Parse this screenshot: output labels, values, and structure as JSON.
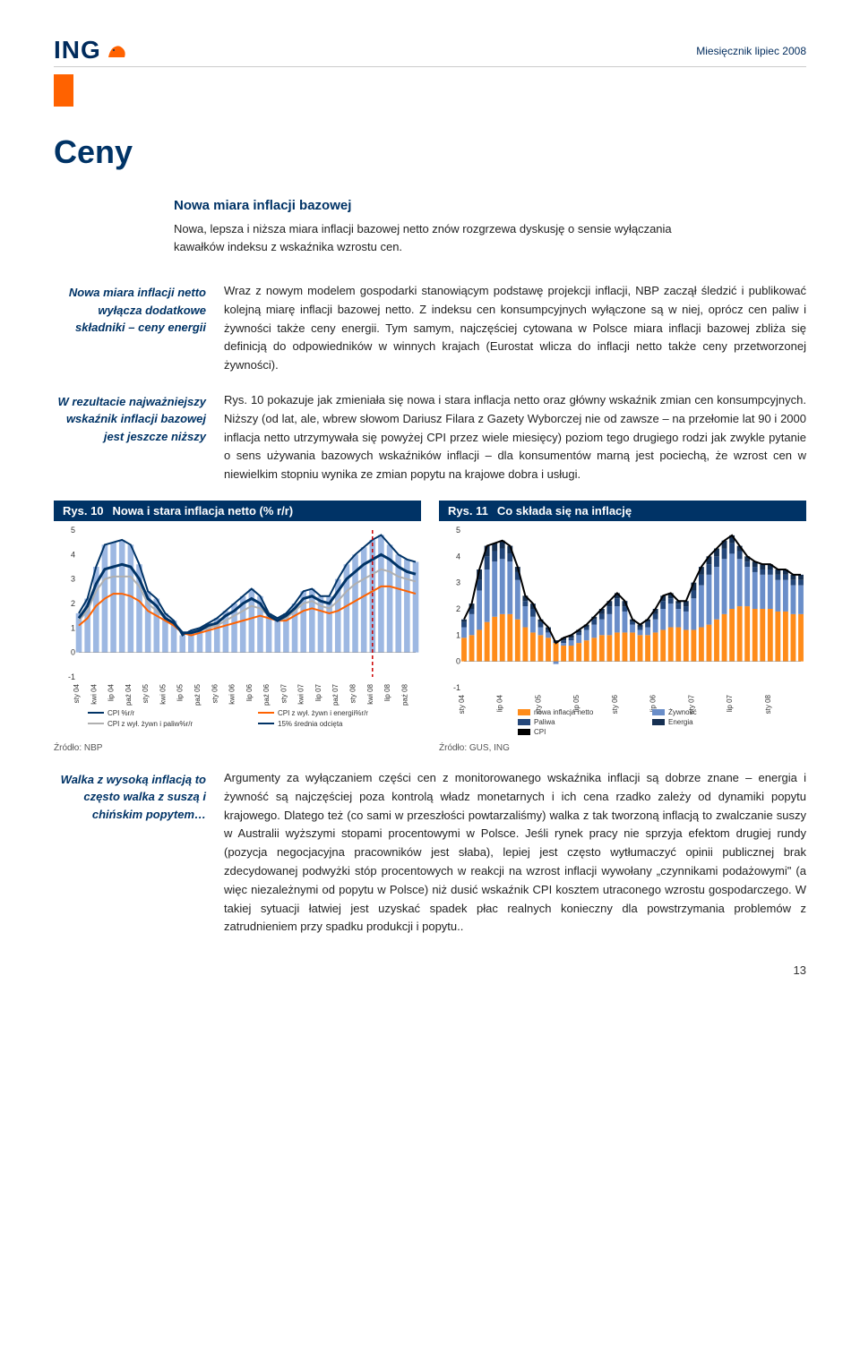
{
  "brand": {
    "name": "ING"
  },
  "pub": {
    "line": "Miesięcznik   lipiec 2008"
  },
  "section_title": "Ceny",
  "sub_box": {
    "heading": "Nowa miara inflacji bazowej",
    "text": "Nowa, lepsza i niższa miara inflacji bazowej netto znów rozgrzewa dyskusję o sensie wyłączania kawałków indeksu z wskaźnika wzrostu cen."
  },
  "para1": {
    "side": "Nowa miara inflacji netto wyłącza dodatkowe składniki – ceny energii",
    "text": "Wraz z nowym modelem gospodarki stanowiącym podstawę projekcji inflacji, NBP zaczął śledzić i publikować kolejną miarę inflacji bazowej netto. Z indeksu cen konsumpcyjnych wyłączone są w niej, oprócz cen paliw i żywności także ceny energii. Tym samym, najczęściej cytowana w Polsce miara inflacji bazowej zbliża się definicją do odpowiedników w winnych krajach (Eurostat wlicza do inflacji netto także ceny przetworzonej żywności)."
  },
  "para2": {
    "side": "W rezultacie najważniejszy wskaźnik inflacji bazowej jest jeszcze niższy",
    "text": "Rys. 10 pokazuje jak zmieniała się nowa i stara inflacja netto oraz główny wskaźnik zmian cen konsumpcyjnych. Niższy (od lat, ale, wbrew słowom Dariusz Filara z Gazety Wyborczej nie od zawsze – na przełomie lat 90 i 2000 inflacja netto utrzymywała się powyżej CPI przez wiele miesięcy) poziom tego drugiego rodzi jak zwykle pytanie o sens używania bazowych wskaźników inflacji – dla konsumentów marną jest pociechą, że wzrost cen w niewielkim stopniu wynika ze zmian popytu na krajowe dobra i usługi."
  },
  "para3": {
    "side": "Walka z wysoką inflacją to często walka z suszą i chińskim popytem…",
    "text": "Argumenty za wyłączaniem części cen z monitorowanego wskaźnika inflacji są dobrze znane – energia i żywność są najczęściej poza kontrolą władz monetarnych i ich cena rzadko zależy od dynamiki popytu krajowego. Dlatego też (co sami w przeszłości powtarzaliśmy) walka z tak tworzoną inflacją to zwalczanie suszy w Australii wyższymi stopami procentowymi w Polsce. Jeśli rynek pracy nie sprzyja efektom drugiej rundy (pozycja negocjacyjna pracowników jest słaba), lepiej jest często wytłumaczyć opinii publicznej brak zdecydowanej podwyżki stóp procentowych w reakcji na wzrost inflacji wywołany „czynnikami podażowymi\" (a więc niezależnymi od popytu w Polsce) niż dusić wskaźnik CPI kosztem utraconego wzrostu gospodarczego. W takiej sytuacji łatwiej jest uzyskać spadek płac realnych konieczny dla powstrzymania problemów z zatrudnieniem przy spadku produkcji i popytu.."
  },
  "chart10": {
    "type": "line+bar",
    "label_num": "Rys. 10",
    "label_title": "Nowa i stara inflacja netto (% r/r)",
    "ylim": [
      -1,
      5
    ],
    "yticks": [
      -1,
      0,
      1,
      2,
      3,
      4,
      5
    ],
    "x_labels": [
      "sty 04",
      "kwi 04",
      "lip 04",
      "paź 04",
      "sty 05",
      "kwi 05",
      "lip 05",
      "paź 05",
      "sty 06",
      "kwi 06",
      "lip 06",
      "paź 06",
      "sty 07",
      "kwi 07",
      "lip 07",
      "paź 07",
      "sty 08",
      "kwi 08",
      "lip 08",
      "paź 08"
    ],
    "bars": {
      "color": "#9db8e2",
      "values": [
        1.6,
        2.2,
        3.5,
        4.4,
        4.5,
        4.6,
        4.4,
        3.6,
        2.5,
        2.2,
        1.6,
        1.3,
        0.7,
        0.9,
        1.0,
        1.2,
        1.4,
        1.7,
        2.0,
        2.3,
        2.6,
        2.3,
        1.6,
        1.4,
        1.6,
        2.0,
        2.5,
        2.6,
        2.3,
        2.3,
        3.0,
        3.6,
        4.0,
        4.3,
        4.6,
        4.8,
        4.4,
        4.0,
        3.8,
        3.7
      ]
    },
    "lines": [
      {
        "name": "CPI %r/r",
        "color": "#003366",
        "width": 2,
        "values": [
          1.6,
          2.2,
          3.5,
          4.4,
          4.5,
          4.6,
          4.4,
          3.6,
          2.5,
          2.2,
          1.6,
          1.3,
          0.7,
          0.9,
          1.0,
          1.2,
          1.4,
          1.7,
          2.0,
          2.3,
          2.6,
          2.3,
          1.6,
          1.4,
          1.6,
          2.0,
          2.5,
          2.6,
          2.3,
          2.3,
          3.0,
          3.6,
          4.0,
          4.3,
          4.6,
          4.8,
          4.4,
          4.0,
          3.8,
          3.7
        ]
      },
      {
        "name": "CPI z wył. żywn i energii%r/r",
        "color": "#ff6200",
        "width": 2,
        "values": [
          1.1,
          1.4,
          1.9,
          2.2,
          2.4,
          2.4,
          2.3,
          2.1,
          1.7,
          1.5,
          1.3,
          1.1,
          0.8,
          0.7,
          0.8,
          0.9,
          1.0,
          1.1,
          1.2,
          1.3,
          1.4,
          1.5,
          1.4,
          1.3,
          1.3,
          1.5,
          1.7,
          1.8,
          1.7,
          1.6,
          1.7,
          1.9,
          2.1,
          2.3,
          2.5,
          2.7,
          2.7,
          2.6,
          2.5,
          2.4
        ]
      },
      {
        "name": "CPI z wył. żywn i paliw%r/r",
        "color": "#b0b0b0",
        "width": 2,
        "values": [
          1.3,
          1.7,
          2.5,
          3.0,
          3.1,
          3.1,
          3.1,
          2.7,
          2.0,
          1.7,
          1.4,
          1.2,
          0.8,
          0.8,
          0.9,
          1.0,
          1.1,
          1.3,
          1.5,
          1.7,
          1.9,
          1.8,
          1.5,
          1.3,
          1.4,
          1.7,
          2.0,
          2.1,
          1.9,
          1.8,
          2.1,
          2.5,
          2.8,
          3.0,
          3.2,
          3.4,
          3.3,
          3.1,
          3.0,
          2.9
        ]
      },
      {
        "name": "15% średnia odcięta",
        "color": "#003366",
        "width": 3,
        "values": [
          1.4,
          1.9,
          2.8,
          3.4,
          3.5,
          3.6,
          3.5,
          3.0,
          2.2,
          1.9,
          1.4,
          1.2,
          0.8,
          0.8,
          0.9,
          1.1,
          1.2,
          1.5,
          1.7,
          2.0,
          2.2,
          2.0,
          1.5,
          1.3,
          1.5,
          1.8,
          2.2,
          2.3,
          2.1,
          2.0,
          2.5,
          3.0,
          3.3,
          3.6,
          3.8,
          4.0,
          3.8,
          3.5,
          3.3,
          3.2
        ]
      }
    ],
    "legend": [
      "CPI %r/r",
      "CPI z wył. żywn i energii%r/r",
      "CPI z wył. żywn i paliw%r/r",
      "15% średnia odcięta"
    ],
    "divider_x_index": 34,
    "source": "Źródło: NBP"
  },
  "chart11": {
    "type": "stacked-bar+line",
    "label_num": "Rys. 11",
    "label_title": "Co składa się na inflację",
    "ylim": [
      -1,
      5
    ],
    "yticks": [
      -1,
      0,
      1,
      2,
      3,
      4,
      5
    ],
    "x_labels": [
      "sty 04",
      "lip 04",
      "sty 05",
      "lip 05",
      "sty 06",
      "lip 06",
      "sty 07",
      "lip 07",
      "sty 08"
    ],
    "series": {
      "nowa_inflacja_netto": {
        "color": "#ff8c1a",
        "values": [
          0.9,
          1.0,
          1.2,
          1.5,
          1.7,
          1.8,
          1.8,
          1.6,
          1.3,
          1.1,
          1.0,
          0.9,
          0.7,
          0.6,
          0.6,
          0.7,
          0.8,
          0.9,
          1.0,
          1.0,
          1.1,
          1.1,
          1.1,
          1.0,
          1.0,
          1.1,
          1.2,
          1.3,
          1.3,
          1.2,
          1.2,
          1.3,
          1.4,
          1.6,
          1.8,
          2.0,
          2.1,
          2.1,
          2.0,
          2.0,
          2.0,
          1.9,
          1.9,
          1.8,
          1.8
        ]
      },
      "Żywność": {
        "color": "#6a8ec9",
        "values": [
          0.4,
          0.8,
          1.5,
          2.0,
          2.1,
          2.1,
          2.0,
          1.5,
          0.8,
          0.6,
          0.3,
          0.2,
          -0.1,
          0.1,
          0.2,
          0.3,
          0.4,
          0.5,
          0.6,
          0.8,
          1.0,
          0.8,
          0.3,
          0.2,
          0.3,
          0.5,
          0.8,
          0.9,
          0.7,
          0.7,
          1.2,
          1.6,
          1.9,
          2.0,
          2.1,
          2.1,
          1.8,
          1.5,
          1.4,
          1.3,
          1.3,
          1.2,
          1.2,
          1.1,
          1.1
        ]
      },
      "Paliwa": {
        "color": "#24477a",
        "values": [
          0.2,
          0.2,
          0.4,
          0.5,
          0.4,
          0.4,
          0.3,
          0.3,
          0.2,
          0.3,
          0.2,
          0.1,
          0.1,
          0.1,
          0.1,
          0.1,
          0.1,
          0.2,
          0.2,
          0.3,
          0.3,
          0.2,
          0.1,
          0.1,
          0.2,
          0.2,
          0.3,
          0.2,
          0.2,
          0.2,
          0.3,
          0.4,
          0.4,
          0.4,
          0.4,
          0.4,
          0.3,
          0.2,
          0.2,
          0.2,
          0.2,
          0.2,
          0.2,
          0.2,
          0.2
        ]
      },
      "Energia": {
        "color": "#163052",
        "values": [
          0.1,
          0.2,
          0.4,
          0.4,
          0.3,
          0.3,
          0.3,
          0.2,
          0.2,
          0.2,
          0.1,
          0.1,
          0.0,
          0.1,
          0.1,
          0.1,
          0.1,
          0.1,
          0.2,
          0.2,
          0.2,
          0.2,
          0.1,
          0.1,
          0.1,
          0.2,
          0.2,
          0.2,
          0.1,
          0.2,
          0.3,
          0.3,
          0.3,
          0.3,
          0.3,
          0.3,
          0.2,
          0.2,
          0.2,
          0.2,
          0.2,
          0.2,
          0.2,
          0.2,
          0.2
        ]
      }
    },
    "cpi_line": {
      "color": "#000",
      "width": 2,
      "values": [
        1.6,
        2.2,
        3.5,
        4.4,
        4.5,
        4.6,
        4.4,
        3.6,
        2.5,
        2.2,
        1.6,
        1.3,
        0.7,
        0.9,
        1.0,
        1.2,
        1.4,
        1.7,
        2.0,
        2.3,
        2.6,
        2.3,
        1.6,
        1.4,
        1.6,
        2.0,
        2.5,
        2.6,
        2.3,
        2.3,
        3.0,
        3.6,
        4.0,
        4.3,
        4.6,
        4.8,
        4.4,
        4.0,
        3.8,
        3.7,
        3.7,
        3.5,
        3.5,
        3.3,
        3.3
      ]
    },
    "legend": [
      "nowa inflacja netto",
      "Żywność",
      "Paliwa",
      "Energia",
      "CPI"
    ],
    "source": "Źródło: GUS, ING"
  },
  "page_number": "13"
}
